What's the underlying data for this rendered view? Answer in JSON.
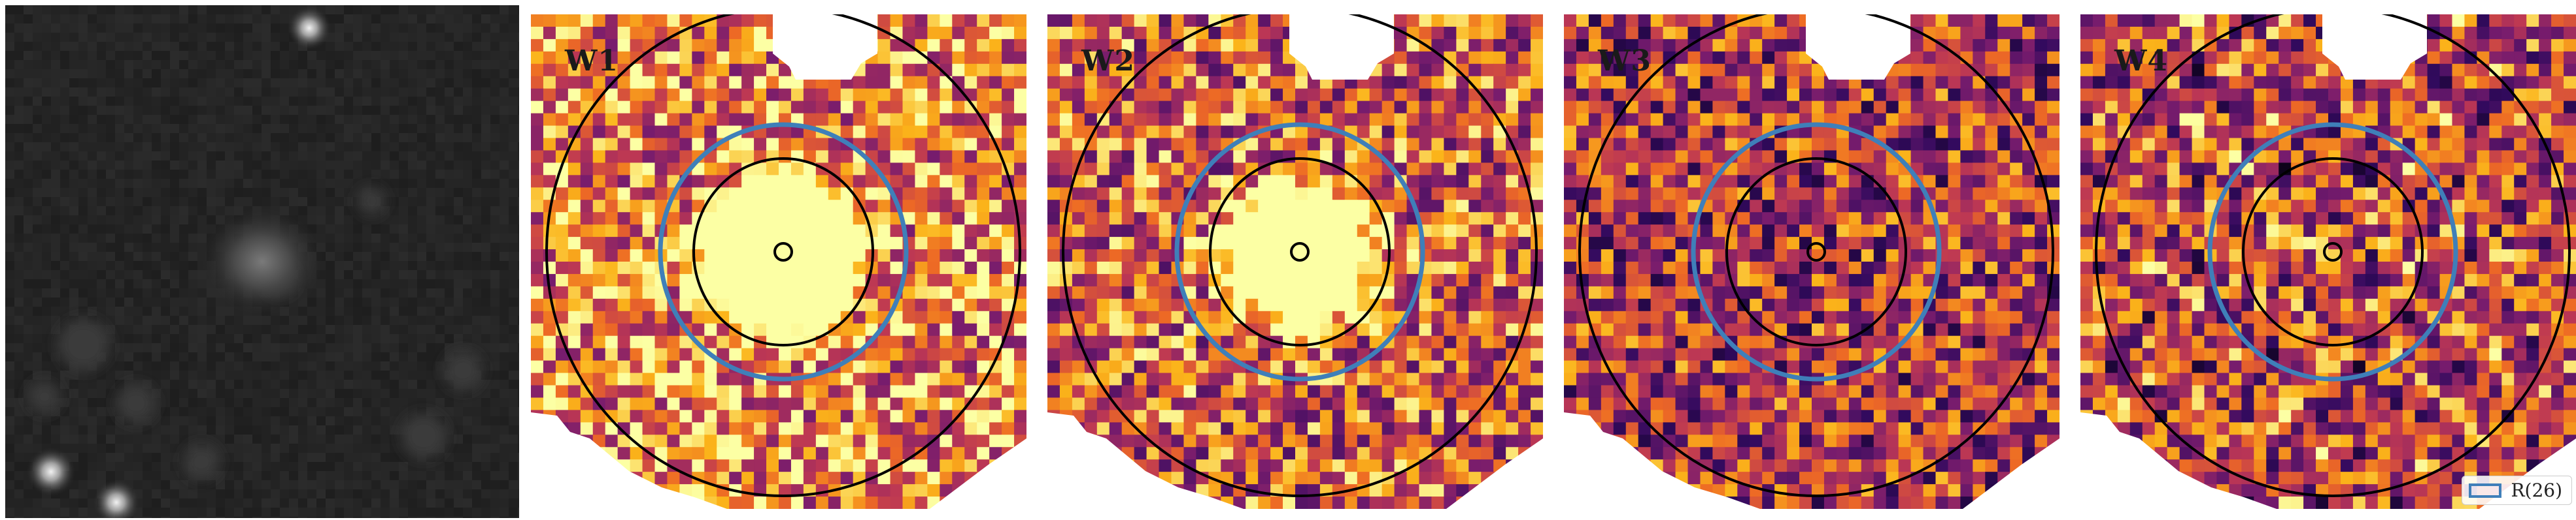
{
  "figure": {
    "panels": [
      {
        "id": "optical",
        "label": ""
      },
      {
        "id": "W1",
        "label": "W1",
        "seed": 11,
        "level": 0.72,
        "blob": 1.0
      },
      {
        "id": "W2",
        "label": "W2",
        "seed": 23,
        "level": 0.62,
        "blob": 0.72
      },
      {
        "id": "W3",
        "label": "W3",
        "seed": 37,
        "level": 0.5,
        "blob": 0.0
      },
      {
        "id": "W4",
        "label": "W4",
        "seed": 51,
        "level": 0.55,
        "blob": 0.05
      }
    ],
    "legend": {
      "label": "R(26)"
    },
    "colors": {
      "ellipse_r26": "#3f7fb9",
      "aperture": "#000000",
      "colormap": "inferno",
      "mask": "#ffffff",
      "optical_background": "#262626"
    }
  }
}
